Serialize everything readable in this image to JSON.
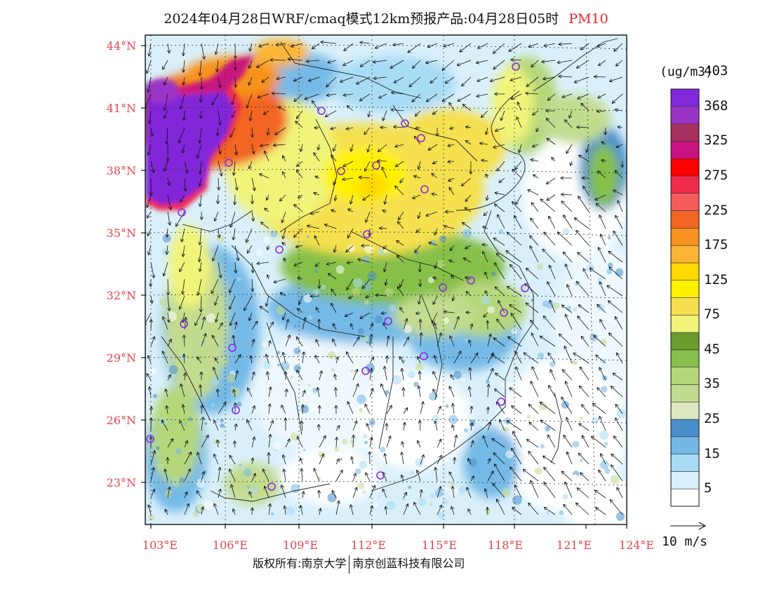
{
  "title": {
    "main": "2024年04月28日WRF/cmaq模式12km预报产品:04月28日05时",
    "product": "PM10"
  },
  "map": {
    "lon_labels": [
      "103°E",
      "106°E",
      "109°E",
      "112°E",
      "115°E",
      "118°E",
      "121°E",
      "124°E"
    ],
    "lat_labels": [
      "44°N",
      "41°N",
      "38°N",
      "35°N",
      "32°N",
      "29°N",
      "26°N",
      "23°N"
    ],
    "axis_label_color": "#e8424a"
  },
  "colorbar": {
    "units": "(ug/m3)",
    "colors": [
      "#ffffff",
      "#d9f0fb",
      "#a8dcf5",
      "#74b9e6",
      "#4a8fca",
      "#dde8c2",
      "#c2db8e",
      "#b5d77a",
      "#86c04a",
      "#6a9c2e",
      "#f0f57a",
      "#f5e050",
      "#fff200",
      "#ffd900",
      "#fbb535",
      "#f7931e",
      "#f26522",
      "#f45c5c",
      "#ee2b4b",
      "#ff0000",
      "#c8127f",
      "#a5305e",
      "#9a34c7",
      "#8128d9"
    ],
    "labels": [
      "5",
      "15",
      "25",
      "35",
      "45",
      "75",
      "125",
      "175",
      "225",
      "275",
      "325",
      "368",
      "403"
    ]
  },
  "wind_key": {
    "label": "10 m/s"
  },
  "copyright": {
    "prefix": "版权所有:南京大学",
    "company": "南京创蓝科技有限公司"
  }
}
